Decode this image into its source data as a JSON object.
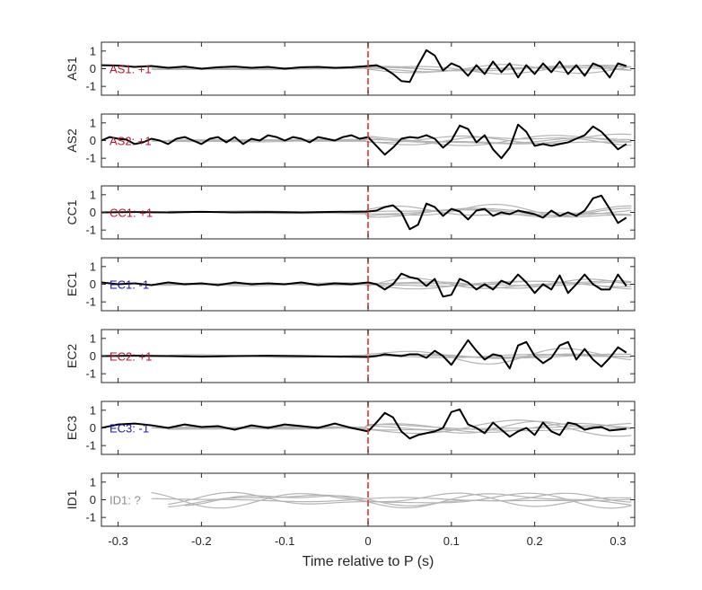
{
  "chart_data": {
    "type": "line",
    "xlabel": "Time relative to P (s)",
    "xlim": [
      -0.32,
      0.32
    ],
    "xticks": [
      -0.3,
      -0.2,
      -0.1,
      0,
      0.1,
      0.2,
      0.3
    ],
    "xtick_labels": [
      "-0.3",
      "-0.2",
      "-0.1",
      "0",
      "0.1",
      "0.2",
      "0.3"
    ],
    "ylim": [
      -1.5,
      1.5
    ],
    "yticks": [
      1,
      0,
      -1
    ],
    "ytick_labels": [
      "1",
      "0",
      "-1"
    ],
    "marker_x": 0,
    "marker_color": "#e8322e",
    "series_color": "#000000",
    "grey_color": "#b4b4b4",
    "polarity_colors": {
      "positive": "#b2182b",
      "negative": "#1a1aaa",
      "unknown": "#8c8c8c"
    },
    "panels": [
      {
        "ylabel": "AS1",
        "annotation": "AS1: +1",
        "polarity": "positive",
        "trace": {
          "x": [
            -0.32,
            -0.3,
            -0.28,
            -0.26,
            -0.24,
            -0.22,
            -0.2,
            -0.18,
            -0.16,
            -0.14,
            -0.12,
            -0.1,
            -0.08,
            -0.06,
            -0.04,
            -0.02,
            0,
            0.01,
            0.02,
            0.03,
            0.04,
            0.05,
            0.06,
            0.07,
            0.08,
            0.09,
            0.1,
            0.11,
            0.12,
            0.13,
            0.14,
            0.15,
            0.16,
            0.17,
            0.18,
            0.19,
            0.2,
            0.21,
            0.22,
            0.23,
            0.24,
            0.25,
            0.26,
            0.27,
            0.28,
            0.29,
            0.3,
            0.31
          ],
          "y": [
            0.2,
            0.18,
            0.1,
            0.15,
            0.05,
            0.12,
            0.0,
            0.08,
            0.12,
            0.05,
            0.1,
            0.0,
            0.08,
            0.1,
            0.05,
            0.08,
            0.15,
            0.2,
            0.0,
            -0.3,
            -0.7,
            -0.75,
            0.2,
            1.05,
            0.75,
            -0.1,
            0.3,
            0.1,
            -0.4,
            0.2,
            -0.3,
            0.4,
            -0.2,
            0.3,
            -0.5,
            0.2,
            -0.3,
            0.3,
            -0.2,
            0.4,
            -0.3,
            0.2,
            -0.4,
            0.3,
            0.1,
            -0.5,
            0.3,
            0.15
          ]
        }
      },
      {
        "ylabel": "AS2",
        "annotation": "AS2: +1",
        "polarity": "positive",
        "trace": {
          "x": [
            -0.32,
            -0.31,
            -0.3,
            -0.29,
            -0.28,
            -0.27,
            -0.26,
            -0.25,
            -0.24,
            -0.23,
            -0.22,
            -0.21,
            -0.2,
            -0.19,
            -0.18,
            -0.17,
            -0.16,
            -0.15,
            -0.14,
            -0.13,
            -0.12,
            -0.11,
            -0.1,
            -0.09,
            -0.08,
            -0.07,
            -0.06,
            -0.05,
            -0.04,
            -0.03,
            -0.02,
            -0.01,
            0,
            0.01,
            0.02,
            0.03,
            0.04,
            0.05,
            0.06,
            0.07,
            0.08,
            0.09,
            0.1,
            0.11,
            0.12,
            0.13,
            0.14,
            0.15,
            0.16,
            0.17,
            0.18,
            0.19,
            0.2,
            0.21,
            0.22,
            0.23,
            0.24,
            0.25,
            0.26,
            0.27,
            0.28,
            0.29,
            0.3,
            0.31
          ],
          "y": [
            0.0,
            0.2,
            0.1,
            0.05,
            -0.2,
            -0.1,
            0.1,
            0.0,
            -0.2,
            0.1,
            0.2,
            0.0,
            -0.2,
            0.1,
            0.2,
            -0.1,
            0.2,
            -0.2,
            0.1,
            0.0,
            0.3,
            0.2,
            0.0,
            0.2,
            0.1,
            -0.1,
            0.2,
            0.1,
            0.0,
            0.2,
            0.3,
            0.1,
            0.2,
            -0.3,
            -0.8,
            -0.4,
            0.1,
            0.2,
            0.15,
            0.3,
            0.1,
            -0.4,
            0.0,
            0.85,
            0.65,
            -0.1,
            0.3,
            -0.5,
            -1.0,
            -0.4,
            0.9,
            0.5,
            -0.3,
            -0.2,
            -0.3,
            -0.2,
            -0.1,
            0.1,
            0.3,
            0.8,
            0.5,
            0.0,
            -0.5,
            -0.2
          ]
        }
      },
      {
        "ylabel": "CC1",
        "annotation": "CC1: +1",
        "polarity": "positive",
        "trace": {
          "x": [
            -0.32,
            -0.28,
            -0.24,
            -0.2,
            -0.16,
            -0.12,
            -0.08,
            -0.04,
            0,
            0.01,
            0.02,
            0.03,
            0.04,
            0.05,
            0.06,
            0.07,
            0.08,
            0.09,
            0.1,
            0.11,
            0.12,
            0.13,
            0.14,
            0.15,
            0.16,
            0.17,
            0.18,
            0.19,
            0.2,
            0.21,
            0.22,
            0.23,
            0.24,
            0.25,
            0.26,
            0.27,
            0.28,
            0.29,
            0.3,
            0.31
          ],
          "y": [
            0.0,
            0.02,
            0.0,
            0.03,
            0.0,
            0.02,
            0.0,
            0.03,
            0.05,
            0.1,
            0.3,
            0.4,
            0.0,
            -0.95,
            -0.7,
            0.5,
            0.3,
            -0.2,
            0.2,
            0.05,
            -0.4,
            0.1,
            0.2,
            -0.2,
            0.0,
            -0.1,
            0.1,
            0.0,
            -0.1,
            -0.3,
            0.1,
            -0.2,
            0.0,
            -0.2,
            0.1,
            0.8,
            0.95,
            0.2,
            -0.6,
            -0.3
          ]
        }
      },
      {
        "ylabel": "EC1",
        "annotation": "EC1: -1",
        "polarity": "negative",
        "trace": {
          "x": [
            -0.32,
            -0.3,
            -0.28,
            -0.26,
            -0.24,
            -0.22,
            -0.2,
            -0.18,
            -0.16,
            -0.14,
            -0.12,
            -0.1,
            -0.08,
            -0.06,
            -0.04,
            -0.02,
            0,
            0.01,
            0.02,
            0.03,
            0.04,
            0.05,
            0.06,
            0.07,
            0.08,
            0.09,
            0.1,
            0.11,
            0.12,
            0.13,
            0.14,
            0.15,
            0.16,
            0.17,
            0.18,
            0.19,
            0.2,
            0.21,
            0.22,
            0.23,
            0.24,
            0.25,
            0.26,
            0.27,
            0.28,
            0.29,
            0.3,
            0.31
          ],
          "y": [
            0.1,
            0.0,
            0.05,
            -0.05,
            0.1,
            0.0,
            0.05,
            -0.05,
            0.1,
            0.0,
            0.05,
            0.0,
            0.1,
            -0.05,
            0.05,
            0.0,
            0.1,
            0.0,
            -0.3,
            0.0,
            0.6,
            0.4,
            0.3,
            -0.1,
            0.3,
            -0.7,
            -0.6,
            0.3,
            0.1,
            -0.3,
            0.0,
            -0.3,
            0.2,
            0.0,
            0.55,
            0.1,
            -0.5,
            0.0,
            -0.3,
            0.5,
            -0.5,
            0.0,
            0.55,
            0.0,
            -0.3,
            -0.3,
            0.55,
            -0.1
          ]
        }
      },
      {
        "ylabel": "EC2",
        "annotation": "EC2: +1",
        "polarity": "positive",
        "trace": {
          "x": [
            -0.32,
            -0.28,
            -0.24,
            -0.2,
            -0.16,
            -0.12,
            -0.08,
            -0.04,
            0,
            0.01,
            0.02,
            0.03,
            0.04,
            0.05,
            0.06,
            0.07,
            0.08,
            0.09,
            0.1,
            0.11,
            0.12,
            0.13,
            0.14,
            0.15,
            0.16,
            0.17,
            0.18,
            0.19,
            0.2,
            0.21,
            0.22,
            0.23,
            0.24,
            0.25,
            0.26,
            0.27,
            0.28,
            0.29,
            0.3,
            0.31
          ],
          "y": [
            0.0,
            0.02,
            0.0,
            -0.03,
            0.0,
            0.02,
            0.0,
            -0.03,
            -0.05,
            0.0,
            0.1,
            0.05,
            0.0,
            0.1,
            0.1,
            -0.1,
            0.3,
            0.0,
            -0.5,
            0.2,
            0.9,
            0.3,
            -0.2,
            0.1,
            0.0,
            -0.7,
            0.6,
            0.8,
            0.0,
            -0.4,
            -0.1,
            0.6,
            0.8,
            -0.2,
            0.4,
            -0.2,
            -0.6,
            -0.1,
            0.5,
            0.2
          ]
        }
      },
      {
        "ylabel": "EC3",
        "annotation": "EC3: -1",
        "polarity": "negative",
        "trace": {
          "x": [
            -0.32,
            -0.3,
            -0.28,
            -0.26,
            -0.24,
            -0.22,
            -0.2,
            -0.18,
            -0.16,
            -0.14,
            -0.12,
            -0.1,
            -0.08,
            -0.06,
            -0.04,
            -0.02,
            0,
            0.01,
            0.02,
            0.03,
            0.04,
            0.05,
            0.06,
            0.07,
            0.08,
            0.09,
            0.1,
            0.11,
            0.12,
            0.13,
            0.14,
            0.15,
            0.16,
            0.17,
            0.18,
            0.19,
            0.2,
            0.21,
            0.22,
            0.23,
            0.24,
            0.25,
            0.26,
            0.27,
            0.28,
            0.29,
            0.3,
            0.31
          ],
          "y": [
            0.0,
            0.2,
            0.25,
            0.15,
            0.0,
            0.2,
            0.05,
            0.1,
            -0.1,
            0.15,
            0.0,
            0.2,
            0.1,
            0.0,
            0.25,
            0.0,
            -0.2,
            0.3,
            0.85,
            0.6,
            -0.2,
            -0.6,
            -0.4,
            -0.3,
            -0.2,
            0.0,
            0.9,
            1.05,
            0.2,
            0.0,
            -0.3,
            0.3,
            -0.1,
            -0.5,
            -0.2,
            0.0,
            -0.4,
            0.3,
            -0.2,
            -0.4,
            0.3,
            0.2,
            -0.1,
            0.0,
            0.05,
            -0.15,
            -0.1,
            -0.05
          ]
        }
      },
      {
        "ylabel": "ID1",
        "annotation": "ID1: ?",
        "polarity": "unknown",
        "trace": null
      }
    ]
  }
}
